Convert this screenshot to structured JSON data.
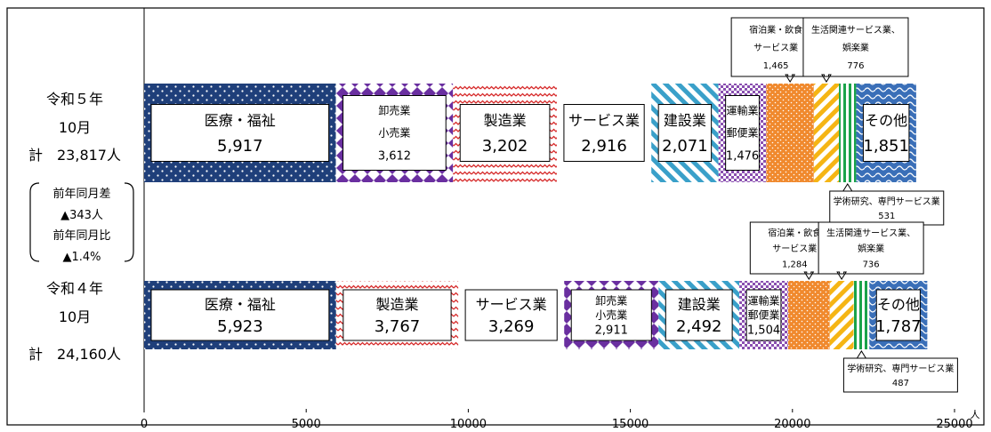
{
  "colors": {
    "medical": "#1f3f7a",
    "wholesale": "#6a2fa0",
    "manufacturing": "#d62828",
    "service": "#7cc242",
    "construction": "#3aa0c9",
    "transport": "#8a4fb0",
    "accommodation": "#f0892d",
    "living": "#f5b514",
    "academic": "#1aa34a",
    "other": "#3a6fb8"
  },
  "rows": {
    "r5": {
      "title": "令和５年",
      "month": "10月",
      "total": "計　23,817人"
    },
    "r4": {
      "title": "令和４年",
      "month": "10月",
      "total": "計　24,160人"
    }
  },
  "comparison": {
    "diff_label": "前年同月差",
    "diff_value": "▲343人",
    "ratio_label": "前年同月比",
    "ratio_value": "▲1.4%"
  },
  "chart_data": {
    "type": "bar",
    "orientation": "horizontal-stacked",
    "unit": "人",
    "xlim": [
      0,
      25000
    ],
    "xticks": [
      "0",
      "5000",
      "10000",
      "15000",
      "20000",
      "25000"
    ],
    "rows": [
      {
        "key": "r5",
        "segments": [
          {
            "id": "medical",
            "label": [
              "医療・福祉",
              "5,917"
            ],
            "value": 5917
          },
          {
            "id": "wholesale",
            "label": [
              "卸売業",
              "小売業",
              "3,612"
            ],
            "value": 3612
          },
          {
            "id": "manufacturing",
            "label": [
              "製造業",
              "3,202"
            ],
            "value": 3202
          },
          {
            "id": "service",
            "label": [
              "サービス業",
              "2,916"
            ],
            "value": 2916
          },
          {
            "id": "construction",
            "label": [
              "建設業",
              "2,071"
            ],
            "value": 2071
          },
          {
            "id": "transport",
            "label": [
              "運輸業",
              "郵便業",
              "1,476"
            ],
            "value": 1476
          },
          {
            "id": "accommodation",
            "label": [],
            "value": 1465
          },
          {
            "id": "living",
            "label": [],
            "value": 776
          },
          {
            "id": "academic",
            "label": [],
            "value": 531
          },
          {
            "id": "other",
            "label": [
              "その他",
              "1,851"
            ],
            "value": 1851
          }
        ],
        "callouts": [
          {
            "id": "accommodation",
            "lines": [
              "宿泊業・飲食",
              "サービス業",
              "1,465"
            ],
            "side": "above"
          },
          {
            "id": "living",
            "lines": [
              "生活関連サービス業、",
              "娯楽業",
              "776"
            ],
            "side": "above"
          },
          {
            "id": "academic",
            "lines": [
              "学術研究、専門サービス業",
              "531"
            ],
            "side": "below"
          }
        ]
      },
      {
        "key": "r4",
        "segments": [
          {
            "id": "medical",
            "label": [
              "医療・福祉",
              "5,923"
            ],
            "value": 5923
          },
          {
            "id": "manufacturing",
            "label": [
              "製造業",
              "3,767"
            ],
            "value": 3767
          },
          {
            "id": "service",
            "label": [
              "サービス業",
              "3,269"
            ],
            "value": 3269
          },
          {
            "id": "wholesale",
            "label": [
              "卸売業",
              "小売業",
              "2,911"
            ],
            "value": 2911
          },
          {
            "id": "construction",
            "label": [
              "建設業",
              "2,492"
            ],
            "value": 2492
          },
          {
            "id": "transport",
            "label": [
              "運輸業",
              "郵便業",
              "1,504"
            ],
            "value": 1504
          },
          {
            "id": "accommodation",
            "label": [],
            "value": 1284
          },
          {
            "id": "living",
            "label": [],
            "value": 736
          },
          {
            "id": "academic",
            "label": [],
            "value": 487
          },
          {
            "id": "other",
            "label": [
              "その他",
              "1,787"
            ],
            "value": 1787
          }
        ],
        "callouts": [
          {
            "id": "accommodation",
            "lines": [
              "宿泊業・飲食",
              "サービス業",
              "1,284"
            ],
            "side": "above"
          },
          {
            "id": "living",
            "lines": [
              "生活関連サービス業、",
              "娯楽業",
              "736"
            ],
            "side": "above"
          },
          {
            "id": "academic",
            "lines": [
              "学術研究、専門サービス業",
              "487"
            ],
            "side": "below"
          }
        ]
      }
    ]
  }
}
